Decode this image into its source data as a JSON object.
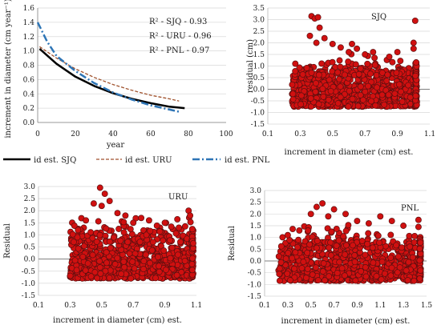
{
  "colors": {
    "sjq": "#000000",
    "uru": "#a0522d",
    "pnl": "#2e75b6",
    "point_fill": "#d01010",
    "point_stroke": "#5a1010",
    "gridline": "#d9d9d9",
    "zero_line": "#7f7f7f"
  },
  "chart_data": [
    {
      "id": "decay",
      "type": "line",
      "xlabel": "year",
      "ylabel": "increment in diameter (cm year⁻¹)",
      "xlim": [
        0,
        100
      ],
      "ylim": [
        0,
        1.6
      ],
      "xticks": [
        0,
        20,
        40,
        60,
        80,
        100
      ],
      "yticks": [
        0,
        0.2,
        0.4,
        0.6,
        0.8,
        1.0,
        1.2,
        1.4,
        1.6
      ],
      "grid": "horizontal",
      "annotations": [
        "R² - SJQ - 0.93",
        "R² - URU - 0.96",
        "R² - PNL - 0.97"
      ],
      "legend_position": "bottom",
      "series": [
        {
          "name": "id est. SJQ",
          "style": "solid",
          "x": [
            1,
            10,
            20,
            30,
            40,
            50,
            60,
            70,
            78
          ],
          "y": [
            1.03,
            0.82,
            0.64,
            0.51,
            0.41,
            0.33,
            0.27,
            0.22,
            0.2
          ]
        },
        {
          "name": "id est. URU",
          "style": "dashed",
          "x": [
            1,
            10,
            20,
            30,
            40,
            50,
            60,
            70,
            75
          ],
          "y": [
            1.06,
            0.9,
            0.75,
            0.63,
            0.53,
            0.45,
            0.38,
            0.33,
            0.3
          ]
        },
        {
          "name": "id est. PNL",
          "style": "dashdot",
          "x": [
            0,
            5,
            10,
            20,
            30,
            40,
            50,
            60,
            70,
            75
          ],
          "y": [
            1.4,
            1.13,
            0.93,
            0.72,
            0.55,
            0.42,
            0.32,
            0.24,
            0.18,
            0.15
          ]
        }
      ]
    },
    {
      "id": "sjq",
      "type": "scatter",
      "label": "SJQ",
      "xlabel": "increment in diameter (cm) est.",
      "ylabel": "residual (cm)",
      "xlim": [
        0.1,
        1.1
      ],
      "ylim": [
        -1.5,
        3.5
      ],
      "xticks": [
        0.1,
        0.3,
        0.5,
        0.7,
        0.9,
        1.1
      ],
      "yticks": [
        -1.5,
        -1,
        -0.5,
        0,
        0.5,
        1,
        1.5,
        2,
        2.5,
        3,
        3.5
      ],
      "grid": "horizontal",
      "density": {
        "x_start": 0.25,
        "x_end": 1.02,
        "band_low": -0.75,
        "band_high": 0.6,
        "peak_x": 0.4,
        "peak_y": 3.15
      },
      "outliers": [
        [
          0.37,
          3.15
        ],
        [
          0.39,
          3.05
        ],
        [
          0.41,
          3.1
        ],
        [
          0.42,
          2.65
        ],
        [
          0.36,
          2.3
        ],
        [
          0.45,
          2.2
        ],
        [
          0.5,
          1.95
        ],
        [
          0.55,
          1.8
        ],
        [
          0.4,
          2.0
        ],
        [
          0.6,
          1.6
        ],
        [
          0.65,
          1.75
        ],
        [
          0.7,
          1.5
        ],
        [
          0.75,
          1.6
        ],
        [
          0.85,
          1.4
        ],
        [
          0.9,
          1.6
        ],
        [
          1.0,
          2.0
        ],
        [
          1.0,
          1.75
        ],
        [
          1.01,
          2.95
        ],
        [
          0.27,
          1.1
        ],
        [
          0.62,
          1.95
        ]
      ]
    },
    {
      "id": "uru",
      "type": "scatter",
      "label": "URU",
      "xlabel": "increment in diameter (cm) est.",
      "ylabel": "Residual",
      "xlim": [
        0.1,
        1.1
      ],
      "ylim": [
        -1.5,
        3.0
      ],
      "xticks": [
        0.1,
        0.3,
        0.5,
        0.7,
        0.9,
        1.1
      ],
      "yticks": [
        -1.5,
        -1,
        -0.5,
        0,
        0.5,
        1,
        1.5,
        2,
        2.5,
        3
      ],
      "grid": "horizontal",
      "density": {
        "x_start": 0.3,
        "x_end": 1.08,
        "band_low": -0.8,
        "band_high": 0.7,
        "peak_x": 0.49,
        "peak_y": 2.95
      },
      "outliers": [
        [
          0.49,
          2.95
        ],
        [
          0.52,
          2.7
        ],
        [
          0.45,
          2.3
        ],
        [
          0.5,
          2.2
        ],
        [
          0.55,
          2.4
        ],
        [
          0.6,
          1.9
        ],
        [
          0.65,
          1.8
        ],
        [
          0.7,
          1.5
        ],
        [
          0.8,
          1.6
        ],
        [
          0.9,
          1.5
        ],
        [
          1.05,
          2.0
        ],
        [
          1.06,
          1.8
        ],
        [
          0.4,
          1.6
        ],
        [
          0.35,
          1.2
        ],
        [
          0.75,
          1.7
        ]
      ]
    },
    {
      "id": "pnl",
      "type": "scatter",
      "label": "PNL",
      "xlabel": "increment in diameter (cm) est.",
      "ylabel": "Residual",
      "xlim": [
        0.1,
        1.5
      ],
      "ylim": [
        -1.5,
        3.0
      ],
      "xticks": [
        0.1,
        0.3,
        0.5,
        0.7,
        0.9,
        1.1,
        1.3,
        1.5
      ],
      "yticks": [
        -1.5,
        -1,
        -0.5,
        0,
        0.5,
        1,
        1.5,
        2,
        2.5,
        3
      ],
      "grid": "horizontal",
      "density": {
        "x_start": 0.22,
        "x_end": 1.45,
        "band_low": -0.85,
        "band_high": 0.55,
        "peak_x": 0.6,
        "peak_y": 2.45
      },
      "outliers": [
        [
          0.6,
          2.45
        ],
        [
          0.55,
          2.3
        ],
        [
          0.7,
          2.2
        ],
        [
          0.5,
          2.0
        ],
        [
          0.8,
          2.0
        ],
        [
          0.65,
          1.9
        ],
        [
          0.9,
          1.7
        ],
        [
          1.0,
          1.6
        ],
        [
          1.1,
          1.9
        ],
        [
          1.2,
          1.7
        ],
        [
          1.3,
          1.5
        ],
        [
          1.43,
          1.75
        ],
        [
          0.4,
          1.3
        ],
        [
          0.3,
          1.1
        ],
        [
          1.43,
          1.45
        ]
      ]
    }
  ]
}
